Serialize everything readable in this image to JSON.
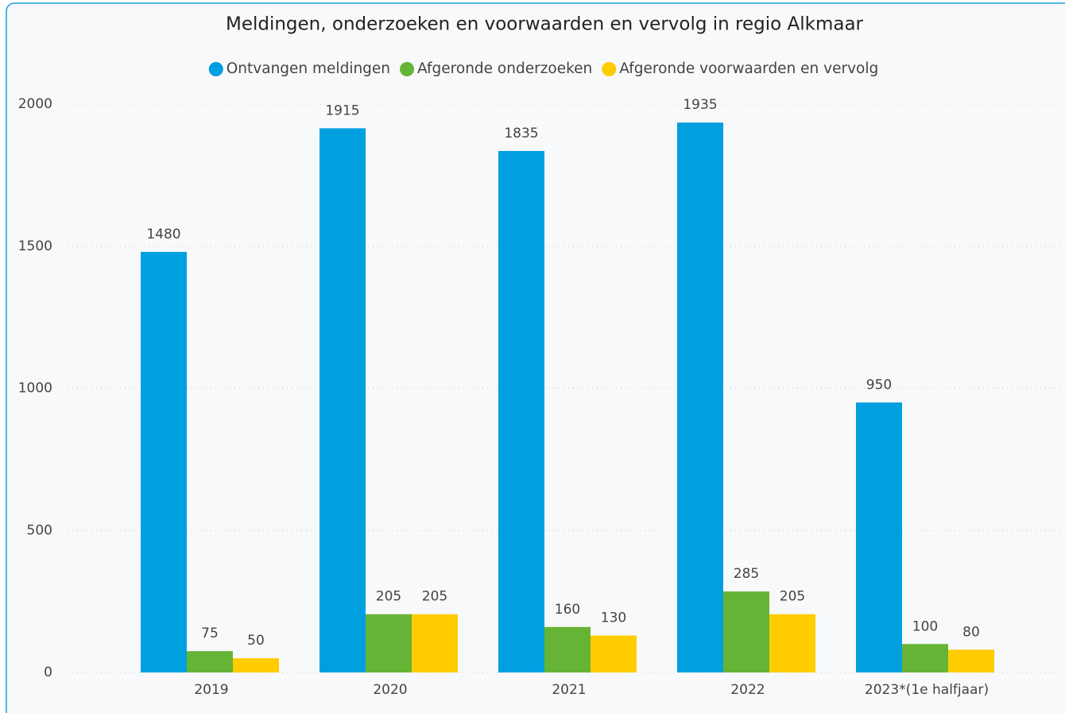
{
  "chart_data": {
    "type": "bar",
    "title": "Meldingen, onderzoeken en voorwaarden en vervolg in regio Alkmaar",
    "categories": [
      "2019",
      "2020",
      "2021",
      "2022",
      "2023*(1e halfjaar)"
    ],
    "series": [
      {
        "name": "Ontvangen meldingen",
        "color": "#009fe0",
        "values": [
          1480,
          1915,
          1835,
          1935,
          950
        ]
      },
      {
        "name": "Afgeronde onderzoeken",
        "color": "#66b436",
        "values": [
          75,
          205,
          160,
          285,
          100
        ]
      },
      {
        "name": "Afgeronde voorwaarden en vervolg",
        "color": "#ffcc00",
        "values": [
          50,
          205,
          130,
          205,
          80
        ]
      }
    ],
    "ylim": [
      0,
      2000
    ],
    "yticks": [
      0,
      500,
      1000,
      1500,
      2000
    ],
    "grid": true,
    "legend": "top"
  }
}
